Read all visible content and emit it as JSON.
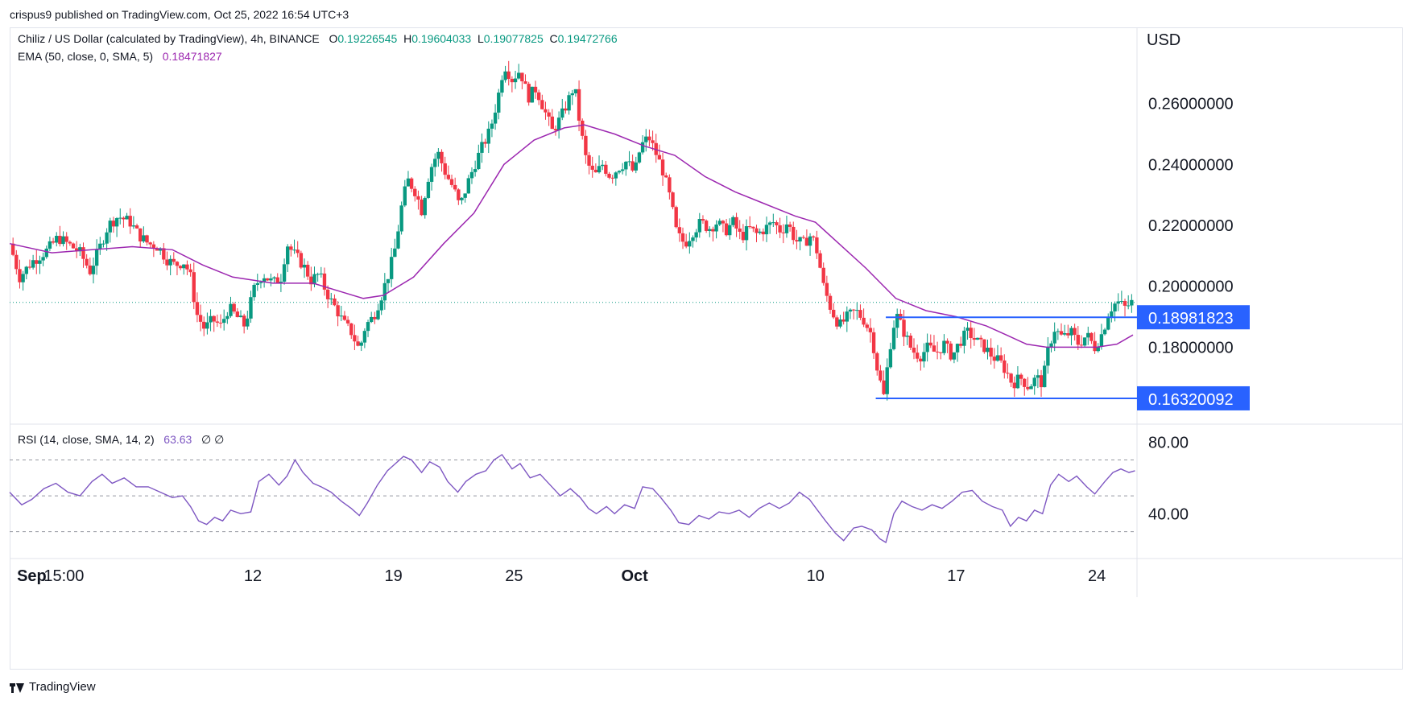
{
  "publisher": "crispus9 published on TradingView.com, Oct 25, 2022 16:54 UTC+3",
  "legend": {
    "symbol": "Chiliz / US Dollar (calculated by TradingView), 4h, BINANCE",
    "o_label": "O",
    "o_value": "0.19226545",
    "h_label": "H",
    "h_value": "0.19604033",
    "l_label": "L",
    "l_value": "0.19077825",
    "c_label": "C",
    "c_value": "0.19472766",
    "ema_label": "EMA (50, close, 0, SMA, 5)",
    "ema_value": "0.18471827",
    "rsi_label": "RSI (14, close, SMA, 14, 2)",
    "rsi_value": "63.63",
    "rsi_extra": "∅ ∅"
  },
  "footer": {
    "brand": "TradingView",
    "icon": "tradingview-logo-icon"
  },
  "colors": {
    "up": "#089981",
    "down": "#f23645",
    "ema": "#9c27b0",
    "rsi": "#7e57c2",
    "levels": "#2962ff",
    "grid": "#e0e3eb"
  },
  "chart_data": [
    {
      "type": "candlestick",
      "currency": "USD",
      "y_ticks": [
        "0.26000000",
        "0.24000000",
        "0.22000000",
        "0.20000000",
        "0.18000000"
      ],
      "ylim": [
        0.155,
        0.285
      ],
      "x_ticks": [
        "Sep",
        "15:00",
        "12",
        "19",
        "25",
        "Oct",
        "10",
        "17",
        "24"
      ],
      "x_tick_days": [
        0,
        1.6,
        11,
        18,
        24,
        30,
        39,
        46,
        53
      ],
      "x_range_days": [
        -1.1,
        55.0
      ],
      "last_price": 0.1947,
      "price_path": [
        [
          -1.1,
          0.214
        ],
        [
          -0.6,
          0.203
        ],
        [
          0.0,
          0.208
        ],
        [
          0.8,
          0.212
        ],
        [
          1.3,
          0.216
        ],
        [
          2.0,
          0.213
        ],
        [
          2.4,
          0.211
        ],
        [
          2.9,
          0.205
        ],
        [
          3.4,
          0.213
        ],
        [
          3.8,
          0.22
        ],
        [
          4.3,
          0.223
        ],
        [
          4.9,
          0.221
        ],
        [
          5.3,
          0.217
        ],
        [
          5.8,
          0.214
        ],
        [
          6.3,
          0.213
        ],
        [
          6.7,
          0.209
        ],
        [
          7.1,
          0.207
        ],
        [
          7.6,
          0.208
        ],
        [
          7.9,
          0.203
        ],
        [
          8.2,
          0.191
        ],
        [
          8.6,
          0.186
        ],
        [
          9.0,
          0.189
        ],
        [
          9.4,
          0.187
        ],
        [
          9.8,
          0.193
        ],
        [
          10.2,
          0.19
        ],
        [
          10.6,
          0.187
        ],
        [
          11.1,
          0.2
        ],
        [
          11.5,
          0.204
        ],
        [
          12.0,
          0.201
        ],
        [
          12.4,
          0.203
        ],
        [
          12.7,
          0.214
        ],
        [
          13.0,
          0.211
        ],
        [
          13.5,
          0.207
        ],
        [
          13.9,
          0.202
        ],
        [
          14.3,
          0.204
        ],
        [
          14.6,
          0.199
        ],
        [
          14.9,
          0.195
        ],
        [
          15.2,
          0.192
        ],
        [
          15.5,
          0.188
        ],
        [
          15.9,
          0.185
        ],
        [
          16.3,
          0.179
        ],
        [
          16.6,
          0.187
        ],
        [
          17.0,
          0.19
        ],
        [
          17.4,
          0.197
        ],
        [
          17.8,
          0.205
        ],
        [
          18.1,
          0.213
        ],
        [
          18.4,
          0.226
        ],
        [
          18.7,
          0.235
        ],
        [
          19.1,
          0.231
        ],
        [
          19.4,
          0.225
        ],
        [
          19.8,
          0.238
        ],
        [
          20.2,
          0.244
        ],
        [
          20.6,
          0.237
        ],
        [
          21.0,
          0.232
        ],
        [
          21.3,
          0.226
        ],
        [
          21.7,
          0.234
        ],
        [
          22.1,
          0.241
        ],
        [
          22.5,
          0.247
        ],
        [
          22.8,
          0.251
        ],
        [
          23.2,
          0.262
        ],
        [
          23.5,
          0.273
        ],
        [
          23.9,
          0.268
        ],
        [
          24.3,
          0.271
        ],
        [
          24.7,
          0.262
        ],
        [
          25.1,
          0.265
        ],
        [
          25.5,
          0.258
        ],
        [
          25.9,
          0.251
        ],
        [
          26.3,
          0.255
        ],
        [
          26.7,
          0.261
        ],
        [
          27.0,
          0.266
        ],
        [
          27.3,
          0.252
        ],
        [
          27.6,
          0.241
        ],
        [
          28.0,
          0.236
        ],
        [
          28.4,
          0.24
        ],
        [
          28.8,
          0.236
        ],
        [
          29.2,
          0.239
        ],
        [
          29.6,
          0.241
        ],
        [
          30.0,
          0.237
        ],
        [
          30.3,
          0.246
        ],
        [
          30.7,
          0.249
        ],
        [
          31.1,
          0.243
        ],
        [
          31.4,
          0.238
        ],
        [
          31.8,
          0.228
        ],
        [
          32.1,
          0.217
        ],
        [
          32.5,
          0.214
        ],
        [
          32.9,
          0.218
        ],
        [
          33.3,
          0.221
        ],
        [
          33.7,
          0.219
        ],
        [
          34.1,
          0.221
        ],
        [
          34.5,
          0.218
        ],
        [
          34.9,
          0.221
        ],
        [
          35.3,
          0.216
        ],
        [
          35.7,
          0.219
        ],
        [
          36.1,
          0.217
        ],
        [
          36.5,
          0.219
        ],
        [
          36.9,
          0.221
        ],
        [
          37.3,
          0.218
        ],
        [
          37.6,
          0.221
        ],
        [
          38.0,
          0.215
        ],
        [
          38.4,
          0.214
        ],
        [
          38.8,
          0.217
        ],
        [
          39.1,
          0.211
        ],
        [
          39.4,
          0.2
        ],
        [
          39.8,
          0.192
        ],
        [
          40.2,
          0.187
        ],
        [
          40.6,
          0.19
        ],
        [
          41.0,
          0.192
        ],
        [
          41.4,
          0.189
        ],
        [
          41.8,
          0.184
        ],
        [
          42.1,
          0.172
        ],
        [
          42.4,
          0.164
        ],
        [
          42.7,
          0.18
        ],
        [
          43.0,
          0.191
        ],
        [
          43.4,
          0.185
        ],
        [
          43.8,
          0.179
        ],
        [
          44.2,
          0.177
        ],
        [
          44.6,
          0.18
        ],
        [
          45.0,
          0.178
        ],
        [
          45.4,
          0.181
        ],
        [
          45.8,
          0.177
        ],
        [
          46.2,
          0.182
        ],
        [
          46.6,
          0.185
        ],
        [
          47.0,
          0.182
        ],
        [
          47.4,
          0.18
        ],
        [
          47.8,
          0.177
        ],
        [
          48.2,
          0.175
        ],
        [
          48.5,
          0.172
        ],
        [
          48.8,
          0.168
        ],
        [
          49.2,
          0.17
        ],
        [
          49.6,
          0.167
        ],
        [
          50.0,
          0.17
        ],
        [
          50.3,
          0.168
        ],
        [
          50.6,
          0.18
        ],
        [
          50.9,
          0.186
        ],
        [
          51.3,
          0.183
        ],
        [
          51.7,
          0.185
        ],
        [
          52.1,
          0.181
        ],
        [
          52.5,
          0.184
        ],
        [
          52.9,
          0.18
        ],
        [
          53.3,
          0.185
        ],
        [
          53.6,
          0.192
        ],
        [
          54.0,
          0.195
        ],
        [
          54.4,
          0.193
        ],
        [
          54.8,
          0.195
        ]
      ],
      "ema_path": [
        [
          -1.1,
          0.214
        ],
        [
          1.0,
          0.211
        ],
        [
          3.0,
          0.212
        ],
        [
          5.0,
          0.213
        ],
        [
          7.0,
          0.212
        ],
        [
          8.5,
          0.207
        ],
        [
          10.0,
          0.203
        ],
        [
          12.0,
          0.201
        ],
        [
          14.0,
          0.201
        ],
        [
          15.5,
          0.198
        ],
        [
          16.5,
          0.196
        ],
        [
          17.5,
          0.197
        ],
        [
          19.0,
          0.203
        ],
        [
          20.5,
          0.214
        ],
        [
          22.0,
          0.224
        ],
        [
          23.5,
          0.24
        ],
        [
          25.0,
          0.248
        ],
        [
          26.5,
          0.252
        ],
        [
          27.5,
          0.253
        ],
        [
          29.0,
          0.25
        ],
        [
          30.5,
          0.246
        ],
        [
          32.0,
          0.243
        ],
        [
          33.5,
          0.236
        ],
        [
          35.0,
          0.231
        ],
        [
          36.5,
          0.227
        ],
        [
          38.0,
          0.223
        ],
        [
          39.0,
          0.221
        ],
        [
          40.0,
          0.215
        ],
        [
          41.5,
          0.206
        ],
        [
          43.0,
          0.196
        ],
        [
          44.5,
          0.192
        ],
        [
          46.0,
          0.19
        ],
        [
          47.5,
          0.187
        ],
        [
          48.5,
          0.184
        ],
        [
          49.5,
          0.181
        ],
        [
          50.5,
          0.18
        ],
        [
          52.0,
          0.18
        ],
        [
          53.0,
          0.18
        ],
        [
          54.0,
          0.181
        ],
        [
          54.8,
          0.184
        ]
      ],
      "levels": [
        {
          "label": "0.18981823",
          "value": 0.18981823,
          "from_day": 42.5
        },
        {
          "label": "0.16320092",
          "value": 0.16320092,
          "from_day": 42.0
        }
      ]
    },
    {
      "type": "line",
      "name": "RSI",
      "y_ticks": [
        "80.00",
        "40.00"
      ],
      "ylim": [
        15,
        90
      ],
      "bands": [
        70,
        50,
        30
      ],
      "value": 63.63,
      "rsi_path": [
        [
          -1.1,
          52
        ],
        [
          -0.5,
          45
        ],
        [
          0.0,
          48
        ],
        [
          0.6,
          54
        ],
        [
          1.2,
          57
        ],
        [
          1.8,
          52
        ],
        [
          2.4,
          50
        ],
        [
          3.0,
          58
        ],
        [
          3.5,
          62
        ],
        [
          4.0,
          57
        ],
        [
          4.6,
          60
        ],
        [
          5.2,
          55
        ],
        [
          5.8,
          55
        ],
        [
          6.4,
          52
        ],
        [
          7.0,
          49
        ],
        [
          7.5,
          50
        ],
        [
          7.9,
          44
        ],
        [
          8.3,
          36
        ],
        [
          8.7,
          34
        ],
        [
          9.1,
          38
        ],
        [
          9.5,
          36
        ],
        [
          9.9,
          42
        ],
        [
          10.4,
          40
        ],
        [
          10.9,
          41
        ],
        [
          11.3,
          58
        ],
        [
          11.8,
          62
        ],
        [
          12.3,
          56
        ],
        [
          12.7,
          61
        ],
        [
          13.1,
          70
        ],
        [
          13.5,
          63
        ],
        [
          14.0,
          57
        ],
        [
          14.4,
          55
        ],
        [
          14.9,
          52
        ],
        [
          15.4,
          47
        ],
        [
          15.9,
          43
        ],
        [
          16.3,
          39
        ],
        [
          16.7,
          46
        ],
        [
          17.2,
          56
        ],
        [
          17.7,
          64
        ],
        [
          18.1,
          68
        ],
        [
          18.5,
          72
        ],
        [
          18.9,
          70
        ],
        [
          19.4,
          63
        ],
        [
          19.8,
          69
        ],
        [
          20.3,
          66
        ],
        [
          20.7,
          58
        ],
        [
          21.2,
          52
        ],
        [
          21.6,
          58
        ],
        [
          22.1,
          62
        ],
        [
          22.6,
          64
        ],
        [
          23.0,
          70
        ],
        [
          23.4,
          73
        ],
        [
          23.9,
          65
        ],
        [
          24.3,
          68
        ],
        [
          24.8,
          60
        ],
        [
          25.3,
          62
        ],
        [
          25.8,
          56
        ],
        [
          26.3,
          50
        ],
        [
          26.8,
          54
        ],
        [
          27.3,
          49
        ],
        [
          27.7,
          43
        ],
        [
          28.1,
          40
        ],
        [
          28.6,
          44
        ],
        [
          29.0,
          40
        ],
        [
          29.5,
          45
        ],
        [
          30.0,
          43
        ],
        [
          30.4,
          55
        ],
        [
          30.9,
          54
        ],
        [
          31.3,
          49
        ],
        [
          31.8,
          42
        ],
        [
          32.2,
          35
        ],
        [
          32.7,
          34
        ],
        [
          33.2,
          39
        ],
        [
          33.7,
          37
        ],
        [
          34.2,
          41
        ],
        [
          34.7,
          40
        ],
        [
          35.2,
          42
        ],
        [
          35.7,
          38
        ],
        [
          36.2,
          43
        ],
        [
          36.7,
          46
        ],
        [
          37.2,
          43
        ],
        [
          37.7,
          46
        ],
        [
          38.2,
          52
        ],
        [
          38.7,
          48
        ],
        [
          39.1,
          42
        ],
        [
          39.5,
          36
        ],
        [
          40.0,
          29
        ],
        [
          40.4,
          25
        ],
        [
          40.9,
          32
        ],
        [
          41.3,
          33
        ],
        [
          41.8,
          31
        ],
        [
          42.2,
          26
        ],
        [
          42.5,
          24
        ],
        [
          42.9,
          40
        ],
        [
          43.3,
          47
        ],
        [
          43.8,
          44
        ],
        [
          44.3,
          42
        ],
        [
          44.8,
          45
        ],
        [
          45.3,
          43
        ],
        [
          45.8,
          47
        ],
        [
          46.3,
          52
        ],
        [
          46.8,
          53
        ],
        [
          47.3,
          47
        ],
        [
          47.8,
          44
        ],
        [
          48.3,
          42
        ],
        [
          48.7,
          33
        ],
        [
          49.1,
          38
        ],
        [
          49.5,
          36
        ],
        [
          49.9,
          42
        ],
        [
          50.3,
          40
        ],
        [
          50.7,
          56
        ],
        [
          51.1,
          62
        ],
        [
          51.6,
          58
        ],
        [
          52.0,
          61
        ],
        [
          52.5,
          55
        ],
        [
          52.9,
          51
        ],
        [
          53.4,
          58
        ],
        [
          53.8,
          63
        ],
        [
          54.2,
          65
        ],
        [
          54.6,
          63
        ],
        [
          54.9,
          64
        ]
      ]
    }
  ]
}
